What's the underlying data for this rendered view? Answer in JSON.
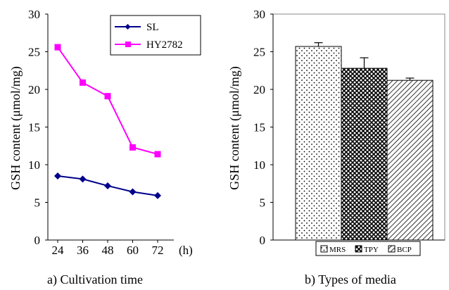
{
  "chart_data": [
    {
      "type": "line",
      "ylabel": "GSH content (μmol/mg)",
      "xlabel": "(h)",
      "caption": "a) Cultivation time",
      "x": [
        24,
        36,
        48,
        60,
        72
      ],
      "ylim": [
        0,
        30
      ],
      "yticks": [
        0,
        5,
        10,
        15,
        20,
        25,
        30
      ],
      "grid": false,
      "legend_position": "top-right",
      "series": [
        {
          "name": "SL",
          "values": [
            8.5,
            8.1,
            7.2,
            6.4,
            5.9
          ],
          "color": "#00008b",
          "marker": "diamond"
        },
        {
          "name": "HY2782",
          "values": [
            25.6,
            20.9,
            19.1,
            12.3,
            11.4
          ],
          "color": "#ff00ff",
          "marker": "square"
        }
      ]
    },
    {
      "type": "bar",
      "ylabel": "GSH content (μmol/mg)",
      "caption": "b) Types of media",
      "categories": [
        "MRS",
        "TPY",
        "BCP"
      ],
      "values": [
        25.7,
        22.8,
        21.2
      ],
      "errors": [
        0.5,
        1.4,
        0.3
      ],
      "ylim": [
        0,
        30
      ],
      "yticks": [
        0,
        5,
        10,
        15,
        20,
        25,
        30
      ],
      "grid": false,
      "legend_position": "bottom",
      "patterns": [
        "dots",
        "crosshatch",
        "diagonal"
      ]
    }
  ]
}
